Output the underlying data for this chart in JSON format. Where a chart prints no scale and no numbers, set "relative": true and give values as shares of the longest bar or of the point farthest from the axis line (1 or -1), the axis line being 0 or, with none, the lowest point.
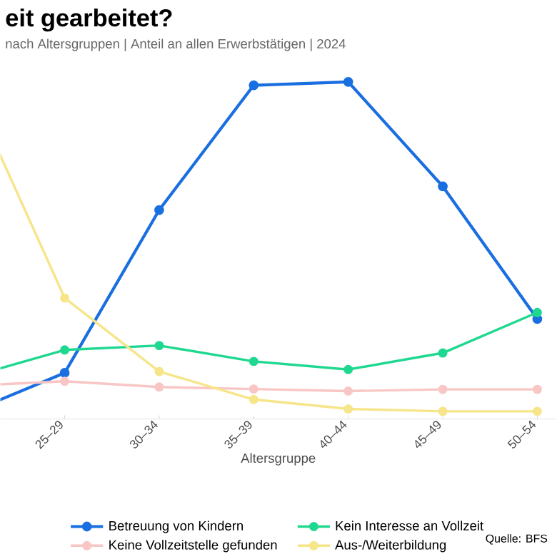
{
  "chart_data": {
    "type": "line",
    "title": "eit gearbeitet?",
    "subtitle": "nach Altersgruppen | Anteil an allen Erwerbstätigen | 2024",
    "xlabel": "Altersgruppe",
    "categories": [
      null,
      "25–29",
      "30–34",
      "35–39",
      "40–44",
      "45–49",
      "50–54"
    ],
    "relative": true,
    "marker": "circle",
    "legend": "bottom",
    "series": [
      {
        "name": "Betreuung von Kindern",
        "color": "#1a6fe0",
        "values": [
          0.02,
          0.137,
          0.62,
          0.99,
          1.0,
          0.69,
          0.297
        ]
      },
      {
        "name": "Kein Interesse an Vollzeit",
        "color": "#1fd890",
        "values": [
          0.125,
          0.205,
          0.218,
          0.171,
          0.147,
          0.196,
          0.316
        ]
      },
      {
        "name": "Keine Vollzeitstelle gefunden",
        "color": "#f9c6c6",
        "values": [
          0.099,
          0.112,
          0.095,
          0.089,
          0.083,
          0.088,
          0.088
        ]
      },
      {
        "name": "Aus-/Weiterbildung",
        "color": "#f7e58a",
        "values": [
          0.98,
          0.359,
          0.141,
          0.058,
          0.03,
          0.023,
          0.023
        ]
      }
    ],
    "annotations": [
      "Quelle: BFS"
    ]
  }
}
